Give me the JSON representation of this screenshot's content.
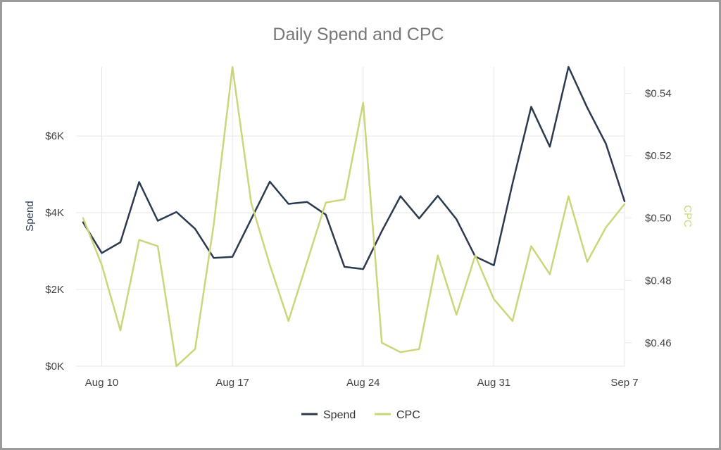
{
  "chart_data": {
    "type": "line",
    "title": "Daily Spend and CPC",
    "x": [
      "Aug 9",
      "Aug 10",
      "Aug 11",
      "Aug 12",
      "Aug 13",
      "Aug 14",
      "Aug 15",
      "Aug 16",
      "Aug 17",
      "Aug 18",
      "Aug 19",
      "Aug 20",
      "Aug 21",
      "Aug 22",
      "Aug 23",
      "Aug 24",
      "Aug 25",
      "Aug 26",
      "Aug 27",
      "Aug 28",
      "Aug 29",
      "Aug 30",
      "Aug 31",
      "Sep 1",
      "Sep 2",
      "Sep 3",
      "Sep 4",
      "Sep 5",
      "Sep 6",
      "Sep 7"
    ],
    "x_ticks": [
      "Aug 10",
      "Aug 17",
      "Aug 24",
      "Aug 31",
      "Sep 7"
    ],
    "y_left": {
      "label": "Spend",
      "ticks": [
        "$0K",
        "$2K",
        "$4K",
        "$6K"
      ],
      "tick_values": [
        0,
        2000,
        4000,
        6000
      ],
      "range": [
        0,
        7800
      ]
    },
    "y_right": {
      "label": "CPC",
      "ticks": [
        "$0.46",
        "$0.48",
        "$0.50",
        "$0.52",
        "$0.54"
      ],
      "tick_values": [
        0.46,
        0.48,
        0.5,
        0.52,
        0.54
      ],
      "range": [
        0.4525,
        0.5485
      ]
    },
    "series": [
      {
        "name": "Spend",
        "axis": "left",
        "color": "#2b3a4f",
        "values": [
          3750,
          2950,
          3230,
          4800,
          3790,
          4020,
          3580,
          2820,
          2850,
          3830,
          4810,
          4230,
          4280,
          3950,
          2590,
          2530,
          3520,
          4430,
          3850,
          4440,
          3830,
          2860,
          2630,
          4760,
          6760,
          5720,
          7800,
          6740,
          5800,
          4300
        ]
      },
      {
        "name": "CPC",
        "axis": "right",
        "color": "#cbd67a",
        "values": [
          0.5,
          0.485,
          0.464,
          0.493,
          0.491,
          0.4525,
          0.458,
          0.498,
          0.5485,
          0.505,
          0.485,
          0.467,
          0.486,
          0.505,
          0.506,
          0.537,
          0.46,
          0.457,
          0.458,
          0.488,
          0.469,
          0.488,
          0.474,
          0.467,
          0.491,
          0.482,
          0.507,
          0.486,
          0.497,
          0.5045
        ]
      }
    ],
    "legend": {
      "position": "bottom-center"
    },
    "grid": {
      "vertical": true,
      "horizontal": true
    }
  }
}
